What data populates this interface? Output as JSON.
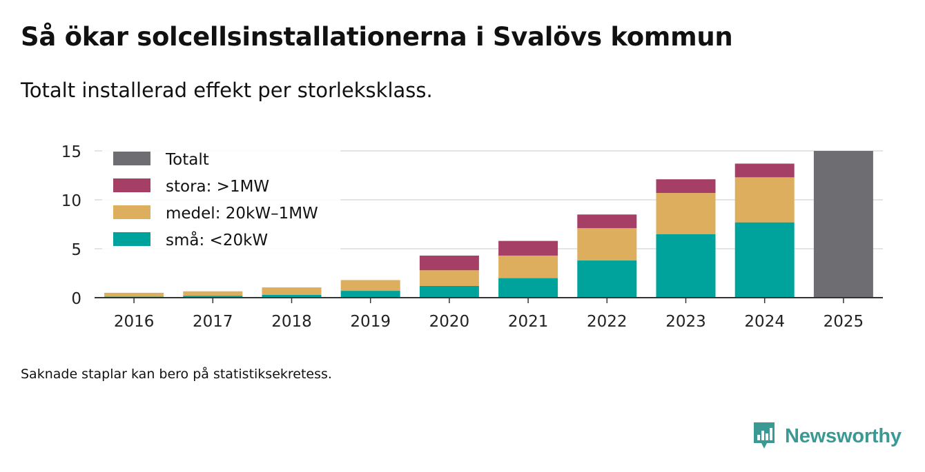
{
  "header": {
    "title": "Så ökar solcellsinstallationerna i Svalövs kommun",
    "subtitle": "Totalt installerad effekt per storleksklass."
  },
  "footer": {
    "note": "Saknade staplar kan bero på statistiksekretess.",
    "brand": "Newsworthy"
  },
  "colors": {
    "totalt": "#6e6d72",
    "stora": "#a63f66",
    "medel": "#ddae5d",
    "sma": "#00a39b",
    "grid": "#dcdcdc",
    "axis": "#333333",
    "brand": "#3a9a93"
  },
  "chart_data": {
    "type": "bar",
    "stacked": true,
    "title": "Så ökar solcellsinstallationerna i Svalövs kommun",
    "subtitle": "Totalt installerad effekt per storleksklass.",
    "xlabel": "",
    "ylabel": "",
    "ylim": [
      0,
      15
    ],
    "yticks": [
      0,
      5,
      10,
      15
    ],
    "grid": true,
    "legend_position": "top-left",
    "categories": [
      "2016",
      "2017",
      "2018",
      "2019",
      "2020",
      "2021",
      "2022",
      "2023",
      "2024",
      "2025"
    ],
    "series": [
      {
        "key": "sma",
        "name": "små: <20kW",
        "values": [
          0.1,
          0.2,
          0.3,
          0.7,
          1.2,
          2.0,
          3.8,
          6.5,
          7.7,
          null
        ]
      },
      {
        "key": "medel",
        "name": "medel: 20kW–1MW",
        "values": [
          0.4,
          0.45,
          0.75,
          1.1,
          1.6,
          2.3,
          3.3,
          4.2,
          4.6,
          null
        ]
      },
      {
        "key": "stora",
        "name": "stora: >1MW",
        "values": [
          0,
          0,
          0,
          0,
          1.5,
          1.5,
          1.4,
          1.4,
          1.4,
          null
        ]
      },
      {
        "key": "totalt",
        "name": "Totalt",
        "values": [
          null,
          null,
          null,
          null,
          null,
          null,
          null,
          null,
          null,
          15.0
        ]
      }
    ],
    "legend_order": [
      "totalt",
      "stora",
      "medel",
      "sma"
    ]
  }
}
